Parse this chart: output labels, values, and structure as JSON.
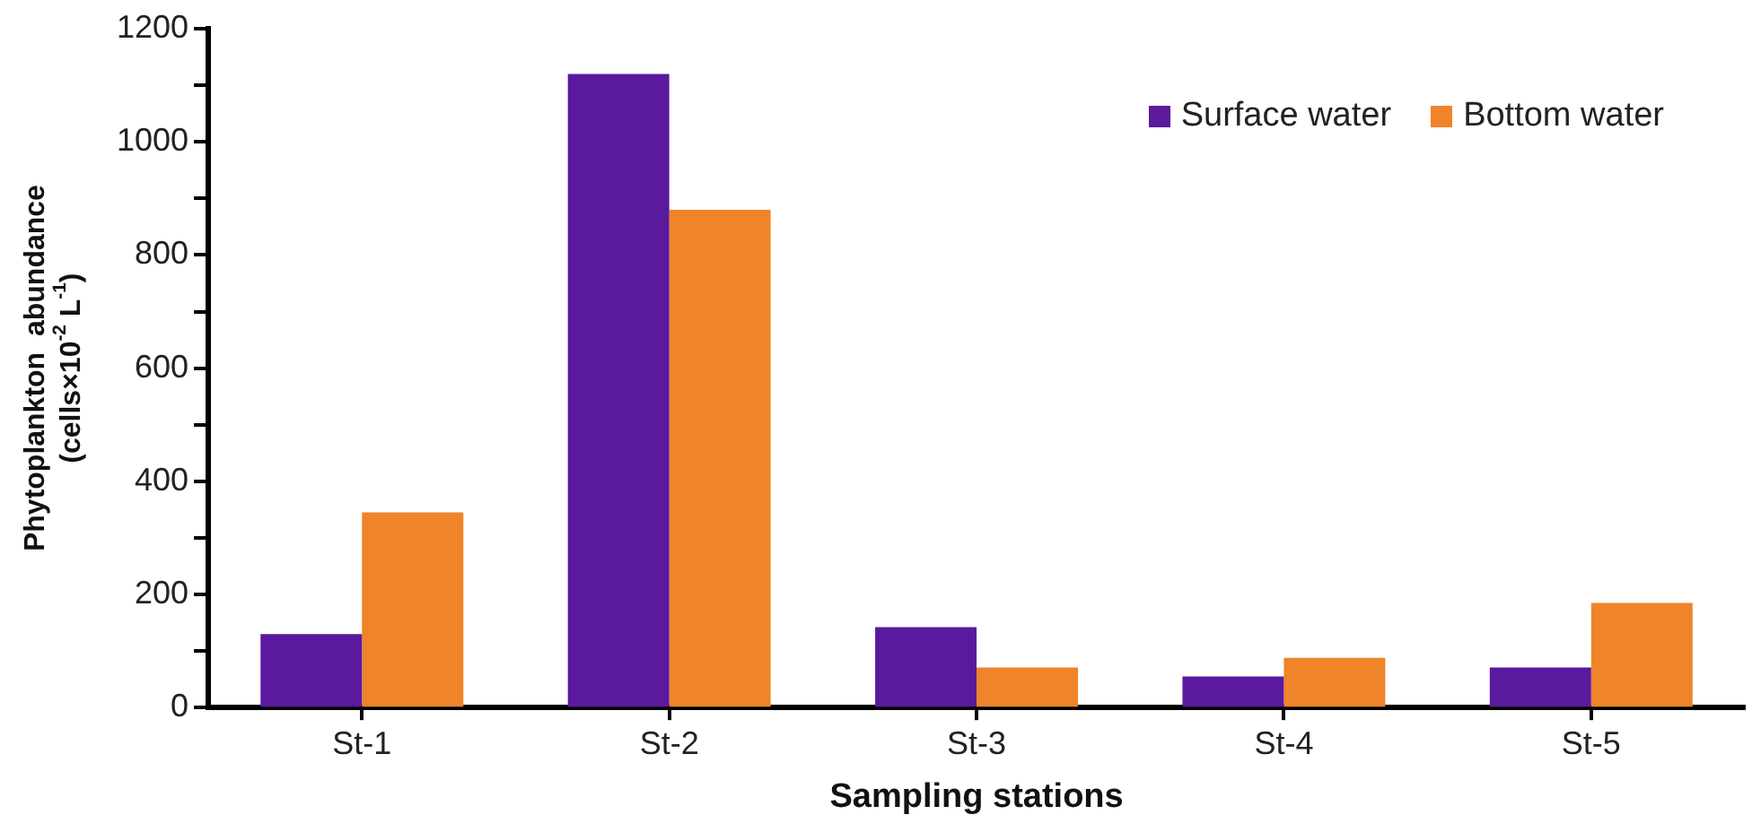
{
  "chart_data": {
    "type": "bar",
    "xlabel": "Sampling stations",
    "ylabel": "Phytoplankton  abundance\n(cells×10$^{-2}$ L$^{-1}$)",
    "categories": [
      "St-1",
      "St-2",
      "St-3",
      "St-4",
      "St-5"
    ],
    "series": [
      {
        "name": "Surface water",
        "color": "#5b1a9e",
        "values": [
          130,
          1120,
          142,
          55,
          71
        ]
      },
      {
        "name": "Bottom water",
        "color": "#f0842a",
        "values": [
          345,
          880,
          71,
          88,
          185
        ]
      }
    ],
    "ylim": [
      0,
      1200
    ],
    "yticks": [
      0,
      {
        "value": 100,
        "label": null
      },
      200,
      {
        "value": 300,
        "label": null
      },
      400,
      {
        "value": 500,
        "label": null
      },
      600,
      {
        "value": 700,
        "label": null
      },
      800,
      {
        "value": 900,
        "label": null
      },
      1000,
      {
        "value": 1100,
        "label": null
      },
      1200
    ],
    "grid": false,
    "legend": "top right"
  }
}
